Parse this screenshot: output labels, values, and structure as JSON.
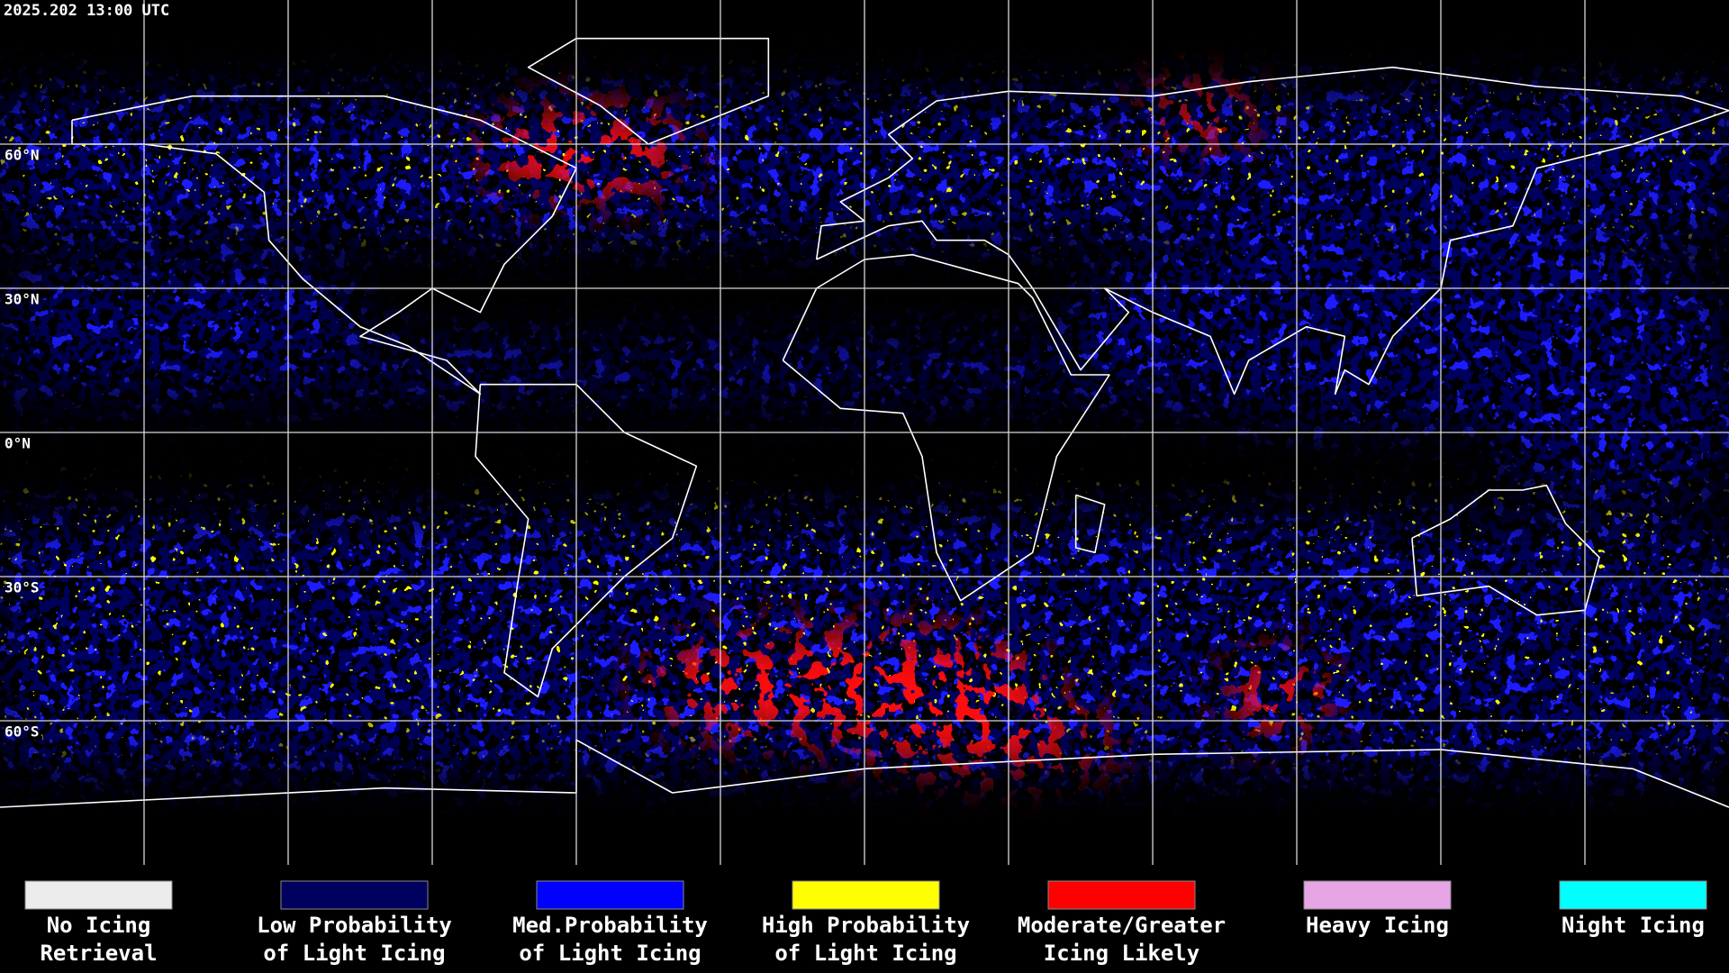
{
  "header": {
    "timestamp": "2025.202 13:00 UTC"
  },
  "map": {
    "lat_labels": [
      "60°N",
      "30°N",
      "0°N",
      "30°S",
      "60°S"
    ]
  },
  "legend": {
    "items": [
      {
        "label": [
          "No Icing",
          "Retrieval"
        ],
        "color": "#ececec"
      },
      {
        "label": [
          "Low Probability",
          "of Light Icing"
        ],
        "color": "#00005e"
      },
      {
        "label": [
          "Med.Probability",
          "of Light Icing"
        ],
        "color": "#0000ff"
      },
      {
        "label": [
          "High Probability",
          "of Light Icing"
        ],
        "color": "#ffff00"
      },
      {
        "label": [
          "Moderate/Greater",
          "Icing Likely"
        ],
        "color": "#ff0000"
      },
      {
        "label": [
          "Heavy Icing"
        ],
        "color": "#e6a6e6"
      },
      {
        "label": [
          "Night Icing"
        ],
        "color": "#00ffff"
      }
    ]
  }
}
